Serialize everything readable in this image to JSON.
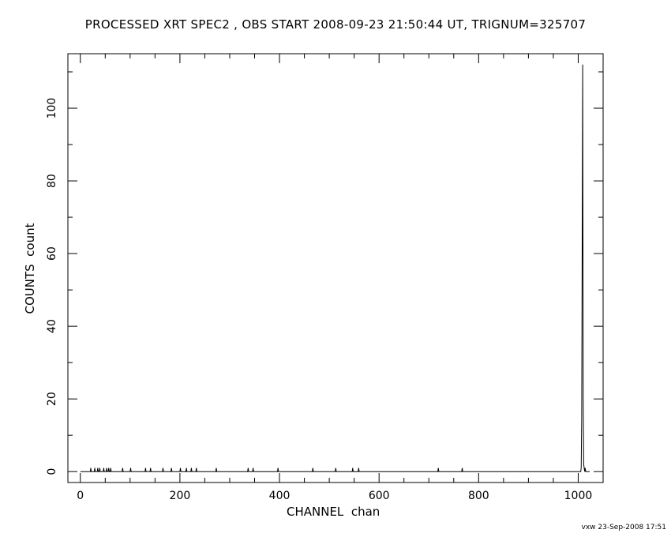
{
  "title": "PROCESSED XRT SPEC2 , OBS START 2008-09-23 21:50:44 UT, TRIGNUM=325707",
  "footer": "vxw 23-Sep-2008 17:51",
  "chart_data": {
    "type": "line",
    "title": "PROCESSED XRT SPEC2 , OBS START 2008-09-23 21:50:44 UT, TRIGNUM=325707",
    "xlabel": "CHANNEL  chan",
    "ylabel": "COUNTS  count",
    "xlim": [
      -25,
      1050
    ],
    "ylim": [
      -3,
      115
    ],
    "x_ticks": [
      0,
      200,
      400,
      600,
      800,
      1000
    ],
    "y_ticks": [
      0,
      20,
      40,
      60,
      80,
      100
    ],
    "grid": false,
    "series": [
      {
        "x": [
          0,
          20,
          21,
          22,
          28,
          29,
          30,
          34,
          35,
          36,
          38,
          39,
          40,
          46,
          47,
          48,
          52,
          53,
          54,
          56,
          57,
          58,
          60,
          61,
          62,
          84,
          85,
          86,
          100,
          101,
          102,
          130,
          131,
          132,
          140,
          141,
          142,
          165,
          166,
          167,
          182,
          183,
          184,
          200,
          201,
          202,
          212,
          213,
          214,
          222,
          223,
          224,
          232,
          233,
          234,
          272,
          273,
          274,
          336,
          337,
          338,
          346,
          347,
          348,
          396,
          397,
          398,
          466,
          467,
          468,
          512,
          513,
          514,
          546,
          547,
          548,
          558,
          559,
          560,
          718,
          719,
          720,
          766,
          767,
          768,
          1005,
          1006,
          1007,
          1008,
          1009,
          1010,
          1011,
          1012,
          1013,
          1014,
          1015,
          1016,
          1023
        ],
        "y": [
          0,
          0,
          1,
          0,
          0,
          1,
          0,
          0,
          1,
          0,
          0,
          1,
          0,
          0,
          1,
          0,
          0,
          1,
          0,
          0,
          1,
          0,
          0,
          1,
          0,
          0,
          1,
          0,
          0,
          1,
          0,
          0,
          1,
          0,
          0,
          1,
          0,
          0,
          1,
          0,
          0,
          1,
          0,
          0,
          1,
          0,
          0,
          1,
          0,
          0,
          1,
          0,
          0,
          1,
          0,
          0,
          1,
          0,
          0,
          1,
          0,
          0,
          1,
          0,
          0,
          1,
          0,
          0,
          1,
          0,
          0,
          1,
          0,
          0,
          1,
          0,
          0,
          1,
          0,
          0,
          1,
          0,
          0,
          1,
          0,
          0,
          1,
          15,
          64,
          112,
          20,
          2,
          1,
          0,
          1,
          0,
          0,
          0
        ]
      }
    ]
  }
}
